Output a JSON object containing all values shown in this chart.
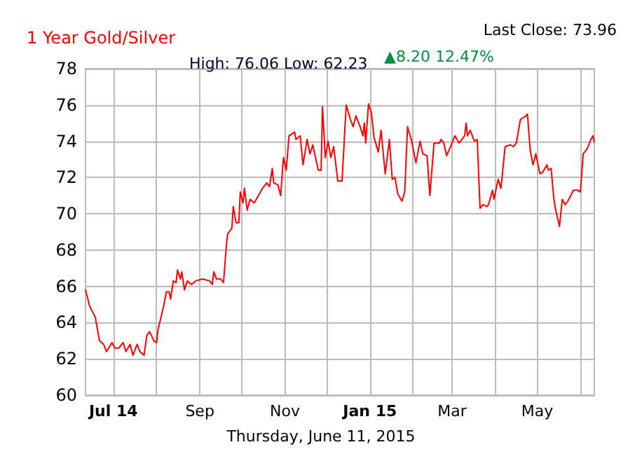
{
  "chart_data": {
    "type": "line",
    "title": "1 Year Gold/Silver",
    "subtitle": "High: 76.06 Low: 62.23",
    "annotations": [
      "Last Close: 73.96",
      "▲8.20 12.47%",
      "Thursday, June 11, 2015"
    ],
    "x": [
      "2014-06-11",
      "2014-06-14",
      "2014-06-18",
      "2014-06-21",
      "2014-06-24",
      "2014-06-26",
      "2014-06-30",
      "2014-07-02",
      "2014-07-05",
      "2014-07-08",
      "2014-07-10",
      "2014-07-13",
      "2014-07-15",
      "2014-07-18",
      "2014-07-20",
      "2014-07-23",
      "2014-07-25",
      "2014-07-27",
      "2014-07-30",
      "2014-08-01",
      "2014-08-02",
      "2014-08-06",
      "2014-08-08",
      "2014-08-10",
      "2014-08-11",
      "2014-08-13",
      "2014-08-15",
      "2014-08-16",
      "2014-08-18",
      "2014-08-19",
      "2014-08-21",
      "2014-08-23",
      "2014-08-26",
      "2014-08-29",
      "2014-09-03",
      "2014-09-08",
      "2014-09-10",
      "2014-09-11",
      "2014-09-13",
      "2014-09-16",
      "2014-09-18",
      "2014-09-20",
      "2014-09-21",
      "2014-09-24",
      "2014-09-25",
      "2014-09-27",
      "2014-09-29",
      "2014-09-30",
      "2014-10-02",
      "2014-10-03",
      "2014-10-05",
      "2014-10-07",
      "2014-10-10",
      "2014-10-13",
      "2014-10-16",
      "2014-10-19",
      "2014-10-21",
      "2014-10-23",
      "2014-10-24",
      "2014-10-27",
      "2014-10-29",
      "2014-10-31",
      "2014-11-02",
      "2014-11-04",
      "2014-11-08",
      "2014-11-09",
      "2014-11-12",
      "2014-11-14",
      "2014-11-17",
      "2014-11-19",
      "2014-11-21",
      "2014-11-23",
      "2014-11-25",
      "2014-11-27",
      "2014-11-28",
      "2014-11-30",
      "2014-12-02",
      "2014-12-04",
      "2014-12-06",
      "2014-12-09",
      "2014-12-12",
      "2014-12-15",
      "2014-12-18",
      "2014-12-20",
      "2014-12-22",
      "2014-12-25",
      "2014-12-27",
      "2014-12-28",
      "2014-12-29",
      "2014-12-31",
      "2015-01-02",
      "2015-01-04",
      "2015-01-07",
      "2015-01-09",
      "2015-01-12",
      "2015-01-15",
      "2015-01-17",
      "2015-01-19",
      "2015-01-21",
      "2015-01-24",
      "2015-01-26",
      "2015-01-28",
      "2015-01-31",
      "2015-02-03",
      "2015-02-06",
      "2015-02-08",
      "2015-02-11",
      "2015-02-13",
      "2015-02-16",
      "2015-02-20",
      "2015-02-21",
      "2015-02-23",
      "2015-02-25",
      "2015-03-01",
      "2015-03-03",
      "2015-03-06",
      "2015-03-10",
      "2015-03-11",
      "2015-03-12",
      "2015-03-14",
      "2015-03-17",
      "2015-03-19",
      "2015-03-21",
      "2015-03-23",
      "2015-03-26",
      "2015-03-27",
      "2015-03-30",
      "2015-03-31",
      "2015-04-03",
      "2015-04-05",
      "2015-04-08",
      "2015-04-12",
      "2015-04-14",
      "2015-04-16",
      "2015-04-19",
      "2015-04-23",
      "2015-04-24",
      "2015-04-26",
      "2015-04-28",
      "2015-04-30",
      "2015-05-03",
      "2015-05-05",
      "2015-05-08",
      "2015-05-09",
      "2015-05-11",
      "2015-05-13",
      "2015-05-14",
      "2015-05-17",
      "2015-05-19",
      "2015-05-21",
      "2015-05-23",
      "2015-05-27",
      "2015-05-30",
      "2015-06-01",
      "2015-06-03",
      "2015-06-06",
      "2015-06-08",
      "2015-06-10",
      "2015-06-11"
    ],
    "series": [
      {
        "color": "#ff0000",
        "values": [
          65.8,
          64.9,
          64.3,
          63.0,
          62.8,
          62.4,
          62.9,
          62.6,
          62.6,
          62.9,
          62.4,
          62.8,
          62.2,
          62.8,
          62.4,
          62.2,
          63.3,
          63.5,
          63.0,
          62.9,
          63.6,
          64.9,
          65.7,
          65.7,
          65.3,
          66.3,
          66.2,
          66.9,
          66.4,
          66.8,
          65.8,
          66.3,
          66.1,
          66.3,
          66.4,
          66.3,
          66.1,
          66.8,
          66.4,
          66.4,
          66.2,
          68.2,
          68.9,
          69.2,
          70.4,
          69.5,
          69.5,
          71.2,
          70.6,
          71.4,
          70.2,
          70.8,
          70.6,
          71.0,
          71.4,
          71.7,
          71.5,
          72.5,
          71.7,
          71.6,
          71.0,
          73.1,
          72.4,
          74.3,
          74.5,
          74.1,
          74.3,
          72.7,
          74.1,
          73.3,
          73.8,
          73.1,
          72.4,
          72.4,
          75.9,
          73.1,
          74.0,
          73.1,
          73.7,
          71.8,
          71.8,
          76.0,
          75.2,
          74.8,
          75.4,
          74.8,
          74.3,
          75.0,
          73.9,
          76.06,
          75.6,
          74.2,
          73.4,
          74.6,
          72.2,
          74.1,
          71.9,
          72.0,
          71.1,
          70.7,
          71.2,
          74.8,
          74.0,
          72.8,
          74.0,
          73.3,
          73.2,
          71.0,
          73.9,
          73.9,
          74.1,
          73.9,
          73.2,
          73.9,
          74.3,
          73.9,
          74.3,
          75.0,
          74.3,
          74.6,
          74.0,
          74.1,
          70.3,
          70.5,
          70.4,
          70.5,
          71.3,
          70.8,
          71.9,
          71.4,
          73.7,
          73.8,
          73.7,
          73.9,
          75.2,
          75.4,
          75.5,
          73.5,
          72.7,
          73.3,
          72.2,
          72.3,
          72.7,
          72.4,
          72.5,
          70.8,
          70.3,
          69.3,
          70.8,
          70.5,
          70.7,
          71.3,
          71.3,
          71.2,
          73.3,
          73.6,
          74.0,
          74.3,
          73.96
        ]
      }
    ],
    "xlim": [
      "2014-06-11",
      "2015-06-11"
    ],
    "xticks": [
      {
        "value": "2014-07-01",
        "label": "Jul 14"
      },
      {
        "value": "2014-08-01",
        "label": null
      },
      {
        "value": "2014-09-01",
        "label": "Sep"
      },
      {
        "value": "2014-10-01",
        "label": null
      },
      {
        "value": "2014-11-01",
        "label": "Nov"
      },
      {
        "value": "2014-12-01",
        "label": null
      },
      {
        "value": "2015-01-01",
        "label": "Jan 15"
      },
      {
        "value": "2015-02-01",
        "label": null
      },
      {
        "value": "2015-03-01",
        "label": "Mar"
      },
      {
        "value": "2015-04-01",
        "label": null
      },
      {
        "value": "2015-05-01",
        "label": "May"
      },
      {
        "value": "2015-06-01",
        "label": null
      }
    ],
    "ylim": [
      60,
      78
    ],
    "yticks": [
      60,
      62,
      64,
      66,
      68,
      70,
      72,
      74,
      76,
      78
    ],
    "grid": true,
    "marker": "none",
    "line_style": "solid"
  }
}
